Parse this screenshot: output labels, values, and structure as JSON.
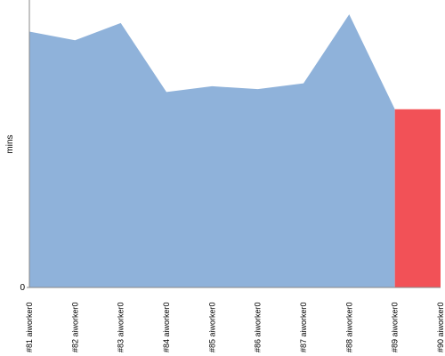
{
  "chart_data": {
    "type": "area",
    "y_label": "mins",
    "categories": [
      "#81 aiworker0",
      "#82 aiworker0",
      "#83 aiworker0",
      "#84 aiworker0",
      "#85 aiworker0",
      "#86 aiworker0",
      "#87 aiworker0",
      "#88 aiworker0",
      "#89 aiworker0",
      "#90 aiworker0"
    ],
    "values": [
      8.9,
      8.6,
      9.2,
      6.8,
      7.0,
      6.9,
      7.1,
      9.5,
      6.2,
      6.2
    ],
    "color": "#8fb2da",
    "last_segment_color": "#f25157",
    "ylim": [
      0,
      10
    ],
    "yticks": [
      0
    ]
  }
}
